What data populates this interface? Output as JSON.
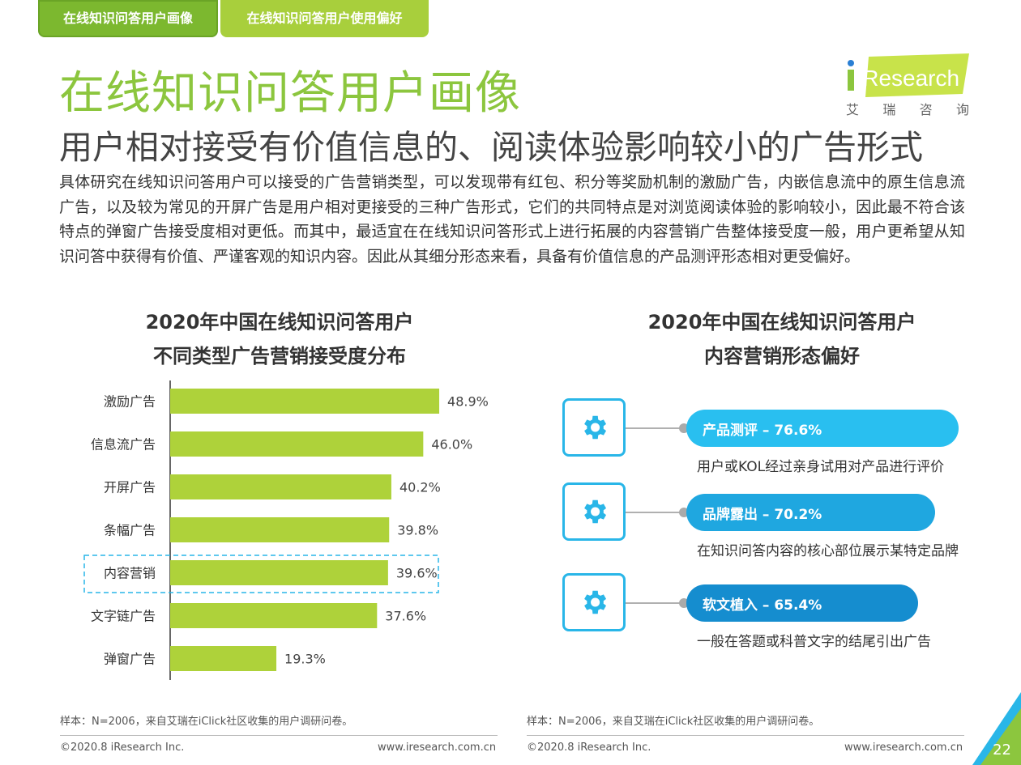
{
  "tabs": [
    {
      "label": "在线知识问答用户画像"
    },
    {
      "label": "在线知识问答用户使用偏好"
    }
  ],
  "logo": {
    "brand": "iResearch",
    "chinese": [
      "艾",
      "瑞",
      "咨",
      "询"
    ]
  },
  "title": "在线知识问答用户画像",
  "subtitle": "用户相对接受有价值信息的、阅读体验影响较小的广告形式",
  "body": "具体研究在线知识问答用户可以接受的广告营销类型，可以发现带有红包、积分等奖励机制的激励广告，内嵌信息流中的原生信息流广告，以及较为常见的开屏广告是用户相对更接受的三种广告形式，它们的共同特点是对浏览阅读体验的影响较小，因此最不符合该特点的弹窗广告接受度相对更低。而其中，最适宜在在线知识问答形式上进行拓展的内容营销广告整体接受度一般，用户更希望从知识问答中获得有价值、严谨客观的知识内容。因此从其细分形态来看，具备有价值信息的产品测评形态相对更受偏好。",
  "chart_data": [
    {
      "type": "bar",
      "orientation": "horizontal",
      "title_lines": [
        "2020年中国在线知识问答用户",
        "不同类型广告营销接受度分布"
      ],
      "categories": [
        "激励广告",
        "信息流广告",
        "开屏广告",
        "条幅广告",
        "内容营销",
        "文字链广告",
        "弹窗广告"
      ],
      "values": [
        48.9,
        46.0,
        40.2,
        39.8,
        39.6,
        37.6,
        19.3
      ],
      "value_labels": [
        "48.9%",
        "46.0%",
        "40.2%",
        "39.8%",
        "39.6%",
        "37.6%",
        "19.3%"
      ],
      "highlight_category": "内容营销",
      "bar_color": "#aed23a",
      "unit": "%"
    },
    {
      "type": "bar",
      "orientation": "horizontal",
      "title_lines": [
        "2020年中国在线知识问答用户",
        "内容营销形态偏好"
      ],
      "categories": [
        "产品测评",
        "品牌露出",
        "软文植入"
      ],
      "values": [
        76.6,
        70.2,
        65.4
      ],
      "items": [
        {
          "label": "产品测评 – 76.6%",
          "desc": "用户或KOL经过亲身试用对产品进行评价",
          "color": "#29bff0"
        },
        {
          "label": "品牌露出 – 70.2%",
          "desc": "在知识问答内容的核心部位展示某特定品牌",
          "color": "#1fa7e0"
        },
        {
          "label": "软文植入 – 65.4%",
          "desc": "一般在答题或科普文字的结尾引出广告",
          "color": "#158dcf"
        }
      ]
    }
  ],
  "footer": {
    "source": "样本：N=2006，来自艾瑞在iClick社区收集的用户调研问卷。",
    "copyright": "©2020.8 iResearch Inc.",
    "website": "www.iresearch.com.cn",
    "page": "22"
  },
  "colors": {
    "accent_green": "#8cc63e",
    "bar_green": "#aed23a",
    "accent_blue": "#29b6e8"
  }
}
